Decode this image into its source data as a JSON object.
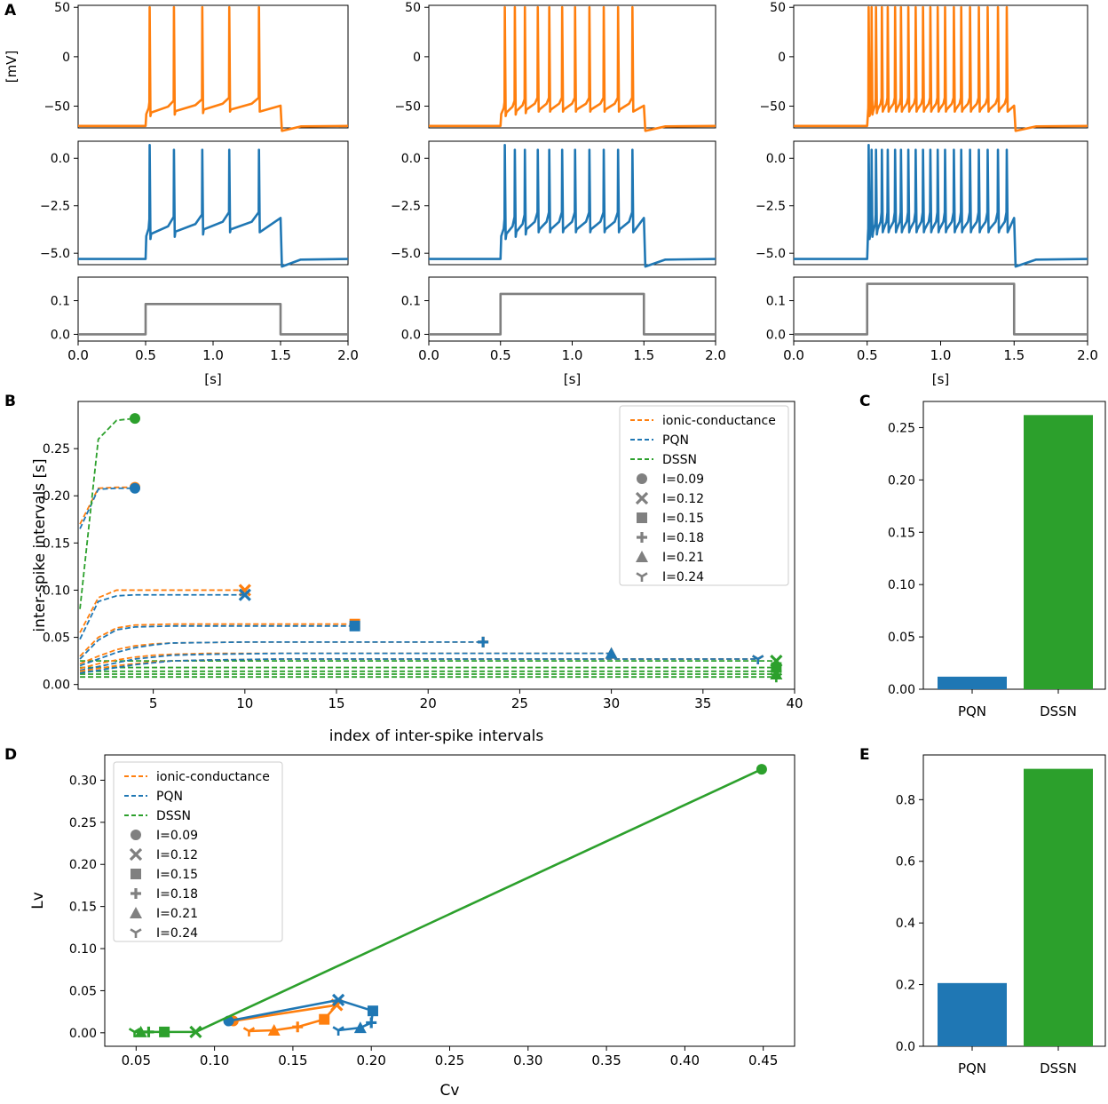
{
  "colors": {
    "ionic": "#ff7f0e",
    "pqn": "#1f77b4",
    "dssn": "#2ca02c",
    "stim": "#7f7f7f",
    "marker": "#808080"
  },
  "panel_letters": {
    "a": "A",
    "b": "B",
    "c": "C",
    "d": "D",
    "e": "E"
  },
  "chart_data": [
    {
      "id": "A",
      "type": "line",
      "title": "",
      "columns": [
        {
          "stimulus_level": 0.09,
          "spike_times": [
            0.53,
            0.71,
            0.92,
            1.12,
            1.34
          ]
        },
        {
          "stimulus_level": 0.12,
          "spike_times": [
            0.53,
            0.6,
            0.67,
            0.76,
            0.84,
            0.93,
            1.02,
            1.12,
            1.22,
            1.32,
            1.42
          ]
        },
        {
          "stimulus_level": 0.15,
          "spike_times": [
            0.51,
            0.53,
            0.56,
            0.6,
            0.64,
            0.69,
            0.73,
            0.78,
            0.83,
            0.88,
            0.93,
            0.98,
            1.03,
            1.09,
            1.14,
            1.2,
            1.26,
            1.32,
            1.39,
            1.45
          ]
        }
      ],
      "rows": [
        {
          "model": "ionic-conductance",
          "ylabel": "[mV]",
          "ylim": [
            -72,
            52
          ],
          "yticks": [
            50,
            0,
            -50
          ],
          "ytick_labels": [
            "50",
            "0",
            "−50"
          ],
          "rest": -70
        },
        {
          "model": "PQN",
          "ylabel": "",
          "ylim": [
            -5.6,
            0.9
          ],
          "yticks": [
            0.0,
            -2.5,
            -5.0
          ],
          "ytick_labels": [
            "0.0",
            "−2.5",
            "−5.0"
          ],
          "rest": -5.3
        },
        {
          "model": "stimulus",
          "ylabel": "",
          "ylim": [
            -0.02,
            0.17
          ],
          "yticks": [
            0.1,
            0.0
          ],
          "ytick_labels": [
            "0.1",
            "0.0"
          ]
        }
      ],
      "xlim": [
        0,
        2
      ],
      "xticks": [
        0.0,
        0.5,
        1.0,
        1.5,
        2.0
      ],
      "xtick_labels": [
        "0.0",
        "0.5",
        "1.0",
        "1.5",
        "2.0"
      ],
      "xlabel": "[s]"
    },
    {
      "id": "B",
      "type": "line",
      "title": "",
      "xlabel": "index of inter-spike intervals",
      "ylabel": "inter-spike intervals [s]",
      "xlim": [
        0.9,
        40
      ],
      "ylim": [
        -0.005,
        0.3
      ],
      "xticks": [
        5,
        10,
        15,
        20,
        25,
        30,
        35,
        40
      ],
      "xtick_labels": [
        "5",
        "10",
        "15",
        "20",
        "25",
        "30",
        "35",
        "40"
      ],
      "yticks": [
        0.0,
        0.05,
        0.1,
        0.15,
        0.2,
        0.25
      ],
      "ytick_labels": [
        "0.00",
        "0.05",
        "0.10",
        "0.15",
        "0.20",
        "0.25"
      ],
      "legend_position": "top-right",
      "legend": {
        "lines": [
          {
            "label": "ionic-conductance",
            "model": "ionic"
          },
          {
            "label": "PQN",
            "model": "pqn"
          },
          {
            "label": "DSSN",
            "model": "dssn"
          }
        ],
        "markers": [
          {
            "label": "I=0.09",
            "marker": "circle"
          },
          {
            "label": "I=0.12",
            "marker": "x"
          },
          {
            "label": "I=0.15",
            "marker": "square"
          },
          {
            "label": "I=0.18",
            "marker": "plus"
          },
          {
            "label": "I=0.21",
            "marker": "triangle"
          },
          {
            "label": "I=0.24",
            "marker": "tri"
          }
        ]
      },
      "series": [
        {
          "name": "ionic I=0.09",
          "model": "ionic",
          "marker": "circle",
          "x": [
            1,
            2,
            3,
            4
          ],
          "y": [
            0.17,
            0.208,
            0.209,
            0.209
          ]
        },
        {
          "name": "PQN I=0.09",
          "model": "pqn",
          "marker": "circle",
          "x": [
            1,
            2,
            3,
            4
          ],
          "y": [
            0.165,
            0.207,
            0.208,
            0.208
          ]
        },
        {
          "name": "DSSN I=0.09",
          "model": "dssn",
          "marker": "circle",
          "x": [
            1,
            2,
            3,
            4
          ],
          "y": [
            0.08,
            0.26,
            0.28,
            0.282
          ]
        },
        {
          "name": "ionic I=0.12",
          "model": "ionic",
          "marker": "x",
          "x": [
            1,
            2,
            3,
            4,
            5,
            6,
            7,
            8,
            9,
            10
          ],
          "y": [
            0.055,
            0.092,
            0.1,
            0.1,
            0.1,
            0.1,
            0.1,
            0.1,
            0.1,
            0.1
          ]
        },
        {
          "name": "PQN I=0.12",
          "model": "pqn",
          "marker": "x",
          "x": [
            1,
            2,
            3,
            4,
            5,
            6,
            7,
            8,
            9,
            10
          ],
          "y": [
            0.048,
            0.088,
            0.094,
            0.095,
            0.095,
            0.095,
            0.095,
            0.095,
            0.095,
            0.095
          ]
        },
        {
          "name": "DSSN I=0.12",
          "model": "dssn",
          "marker": "x",
          "x": [
            1,
            39
          ],
          "y": [
            0.025,
            0.025
          ]
        },
        {
          "name": "ionic I=0.15",
          "model": "ionic",
          "marker": "square",
          "x": [
            1,
            2,
            3,
            4,
            6,
            10,
            16
          ],
          "y": [
            0.03,
            0.05,
            0.06,
            0.063,
            0.064,
            0.064,
            0.064
          ]
        },
        {
          "name": "PQN I=0.15",
          "model": "pqn",
          "marker": "square",
          "x": [
            1,
            2,
            3,
            4,
            6,
            10,
            16
          ],
          "y": [
            0.027,
            0.047,
            0.058,
            0.061,
            0.062,
            0.062,
            0.062
          ]
        },
        {
          "name": "DSSN I=0.15",
          "model": "dssn",
          "marker": "square",
          "x": [
            1,
            39
          ],
          "y": [
            0.018,
            0.018
          ]
        },
        {
          "name": "ionic I=0.18",
          "model": "ionic",
          "marker": "plus",
          "x": [
            1,
            2,
            3,
            4,
            5,
            6,
            10,
            23
          ],
          "y": [
            0.022,
            0.03,
            0.037,
            0.041,
            0.043,
            0.044,
            0.045,
            0.045
          ]
        },
        {
          "name": "PQN I=0.18",
          "model": "pqn",
          "marker": "plus",
          "x": [
            1,
            2,
            3,
            4,
            5,
            6,
            10,
            23
          ],
          "y": [
            0.02,
            0.027,
            0.034,
            0.039,
            0.042,
            0.044,
            0.045,
            0.045
          ]
        },
        {
          "name": "DSSN I=0.18",
          "model": "dssn",
          "marker": "plus",
          "x": [
            1,
            39
          ],
          "y": [
            0.014,
            0.014
          ]
        },
        {
          "name": "ionic I=0.21",
          "model": "ionic",
          "marker": "triangle",
          "x": [
            1,
            2,
            3,
            4,
            5,
            6,
            8,
            12,
            30
          ],
          "y": [
            0.017,
            0.022,
            0.026,
            0.029,
            0.031,
            0.032,
            0.033,
            0.033,
            0.033
          ]
        },
        {
          "name": "PQN I=0.21",
          "model": "pqn",
          "marker": "triangle",
          "x": [
            1,
            2,
            3,
            4,
            5,
            6,
            8,
            12,
            30
          ],
          "y": [
            0.015,
            0.019,
            0.023,
            0.027,
            0.029,
            0.031,
            0.032,
            0.033,
            0.033
          ]
        },
        {
          "name": "DSSN I=0.21",
          "model": "dssn",
          "marker": "triangle",
          "x": [
            1,
            39
          ],
          "y": [
            0.011,
            0.011
          ]
        },
        {
          "name": "ionic I=0.24",
          "model": "ionic",
          "marker": "tri",
          "x": [
            1,
            2,
            3,
            4,
            5,
            6,
            8,
            12,
            38
          ],
          "y": [
            0.014,
            0.017,
            0.02,
            0.022,
            0.024,
            0.025,
            0.026,
            0.027,
            0.027
          ]
        },
        {
          "name": "PQN I=0.24",
          "model": "pqn",
          "marker": "tri",
          "x": [
            1,
            2,
            3,
            4,
            5,
            6,
            8,
            12,
            38
          ],
          "y": [
            0.012,
            0.015,
            0.018,
            0.021,
            0.023,
            0.025,
            0.026,
            0.027,
            0.027
          ]
        },
        {
          "name": "DSSN I=0.24",
          "model": "dssn",
          "marker": "tri",
          "x": [
            1,
            39
          ],
          "y": [
            0.008,
            0.008
          ]
        }
      ]
    },
    {
      "id": "C",
      "type": "bar",
      "title": "",
      "categories": [
        "PQN",
        "DSSN"
      ],
      "values": [
        0.012,
        0.262
      ],
      "ylim": [
        0,
        0.275
      ],
      "yticks": [
        0.0,
        0.05,
        0.1,
        0.15,
        0.2,
        0.25
      ],
      "ytick_labels": [
        "0.00",
        "0.05",
        "0.10",
        "0.15",
        "0.20",
        "0.25"
      ]
    },
    {
      "id": "D",
      "type": "scatter",
      "title": "",
      "xlabel": "Cv",
      "ylabel": "Lv",
      "xlim": [
        0.03,
        0.47
      ],
      "ylim": [
        -0.016,
        0.33
      ],
      "xticks": [
        0.05,
        0.1,
        0.15,
        0.2,
        0.25,
        0.3,
        0.35,
        0.4,
        0.45
      ],
      "xtick_labels": [
        "0.05",
        "0.10",
        "0.15",
        "0.20",
        "0.25",
        "0.30",
        "0.35",
        "0.40",
        "0.45"
      ],
      "yticks": [
        0.0,
        0.05,
        0.1,
        0.15,
        0.2,
        0.25,
        0.3
      ],
      "ytick_labels": [
        "0.00",
        "0.05",
        "0.10",
        "0.15",
        "0.20",
        "0.25",
        "0.30"
      ],
      "legend_position": "top-left",
      "legend": {
        "lines": [
          {
            "label": "ionic-conductance",
            "model": "ionic"
          },
          {
            "label": "PQN",
            "model": "pqn"
          },
          {
            "label": "DSSN",
            "model": "dssn"
          }
        ],
        "markers": [
          {
            "label": "I=0.09",
            "marker": "circle"
          },
          {
            "label": "I=0.12",
            "marker": "x"
          },
          {
            "label": "I=0.15",
            "marker": "square"
          },
          {
            "label": "I=0.18",
            "marker": "plus"
          },
          {
            "label": "I=0.21",
            "marker": "triangle"
          },
          {
            "label": "I=0.24",
            "marker": "tri"
          }
        ]
      },
      "series": [
        {
          "name": "ionic-conductance",
          "model": "ionic",
          "markers": [
            "circle",
            "x",
            "square",
            "plus",
            "triangle",
            "tri"
          ],
          "x": [
            0.112,
            0.178,
            0.17,
            0.153,
            0.138,
            0.122
          ],
          "y": [
            0.014,
            0.033,
            0.016,
            0.007,
            0.003,
            0.002
          ]
        },
        {
          "name": "PQN",
          "model": "pqn",
          "markers": [
            "circle",
            "x",
            "square",
            "plus",
            "triangle",
            "tri"
          ],
          "x": [
            0.109,
            0.179,
            0.201,
            0.2,
            0.193,
            0.179
          ],
          "y": [
            0.014,
            0.039,
            0.026,
            0.012,
            0.006,
            0.003
          ]
        },
        {
          "name": "DSSN",
          "model": "dssn",
          "markers": [
            "circle",
            "x",
            "square",
            "plus",
            "triangle",
            "tri"
          ],
          "x": [
            0.449,
            0.088,
            0.068,
            0.058,
            0.053,
            0.049
          ],
          "y": [
            0.313,
            0.001,
            0.001,
            0.001,
            0.001,
            0.001
          ]
        }
      ]
    },
    {
      "id": "E",
      "type": "bar",
      "title": "",
      "categories": [
        "PQN",
        "DSSN"
      ],
      "values": [
        0.205,
        0.9
      ],
      "ylim": [
        0,
        0.945
      ],
      "yticks": [
        0.0,
        0.2,
        0.4,
        0.6,
        0.8
      ],
      "ytick_labels": [
        "0.0",
        "0.2",
        "0.4",
        "0.6",
        "0.8"
      ]
    }
  ]
}
